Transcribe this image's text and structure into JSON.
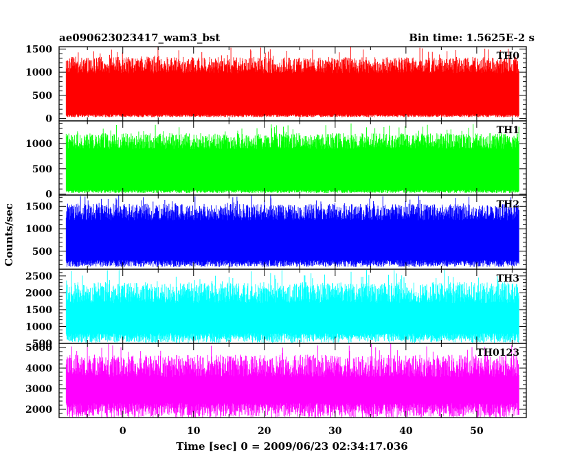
{
  "chart_data": {
    "type": "line",
    "title_left": "ae090623023417_wam3_bst",
    "title_right": "Bin time: 1.5625E-2 s",
    "xlabel": "Time [sec] 0 = 2009/06/23 02:34:17.036",
    "ylabel": "Counts/sec",
    "xlim": [
      -9,
      57
    ],
    "data_x_range": [
      -8,
      56
    ],
    "xticks": [
      0,
      10,
      20,
      30,
      40,
      50
    ],
    "xtick_labels": [
      "0",
      "10",
      "20",
      "30",
      "40",
      "50"
    ],
    "grid": false,
    "panels": [
      {
        "name": "TH0",
        "color": "#ff0000",
        "ylim": [
          -50,
          1550
        ],
        "yticks": [
          0,
          500,
          1000,
          1500
        ],
        "ytick_labels": [
          "0",
          "500",
          "1000",
          "1500"
        ],
        "baseline": 630,
        "envelope_low": [
          30,
          90
        ],
        "envelope_high": [
          1150,
          1550
        ]
      },
      {
        "name": "TH1",
        "color": "#00ff00",
        "ylim": [
          -20,
          1450
        ],
        "yticks": [
          0,
          500,
          1000
        ],
        "ytick_labels": [
          "0",
          "500",
          "1000"
        ],
        "baseline": 580,
        "envelope_low": [
          20,
          80
        ],
        "envelope_high": [
          1050,
          1400
        ]
      },
      {
        "name": "TH2",
        "color": "#0000ff",
        "ylim": [
          100,
          1750
        ],
        "yticks": [
          500,
          1000,
          1500
        ],
        "ytick_labels": [
          "500",
          "1000",
          "1500"
        ],
        "baseline": 820,
        "envelope_low": [
          150,
          300
        ],
        "envelope_high": [
          1400,
          1750
        ]
      },
      {
        "name": "TH3",
        "color": "#00ffff",
        "ylim": [
          500,
          2700
        ],
        "yticks": [
          500,
          1000,
          1500,
          2000,
          2500
        ],
        "ytick_labels": [
          "500",
          "1000",
          "1500",
          "2000",
          "2500"
        ],
        "baseline": 1350,
        "envelope_low": [
          520,
          800
        ],
        "envelope_high": [
          2000,
          2700
        ]
      },
      {
        "name": "TH0123",
        "color": "#ff00ff",
        "ylim": [
          1600,
          5200
        ],
        "yticks": [
          2000,
          3000,
          4000,
          5000
        ],
        "ytick_labels": [
          "2000",
          "3000",
          "4000",
          "5000"
        ],
        "baseline": 3300,
        "envelope_low": [
          1600,
          2300
        ],
        "envelope_high": [
          4200,
          5200
        ]
      }
    ]
  }
}
